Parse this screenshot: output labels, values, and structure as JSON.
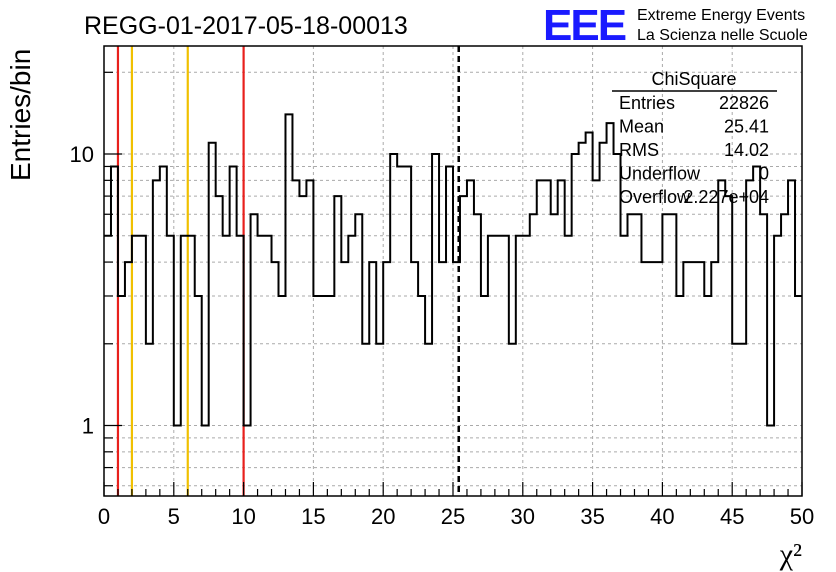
{
  "title": "REGG-01-2017-05-18-00013",
  "logo": {
    "mark": "EEE",
    "line1": "Extreme Energy Events",
    "line2": "La Scienza nelle Scuole",
    "color": "#1a1aff"
  },
  "stats": {
    "name": "ChiSquare",
    "rows": [
      {
        "label": "Entries",
        "value": "22826"
      },
      {
        "label": "Mean",
        "value": "25.41"
      },
      {
        "label": "RMS",
        "value": "14.02"
      },
      {
        "label": "Underflow",
        "value": "0"
      },
      {
        "label": "Overflow",
        "value": "2.227e+04"
      }
    ]
  },
  "chart_data": {
    "type": "histogram",
    "title": "REGG-01-2017-05-18-00013",
    "xlabel": "χ²",
    "ylabel": "Entries/bin",
    "xlim": [
      0,
      50
    ],
    "ylim": [
      0.55,
      25
    ],
    "yscale": "log",
    "grid": true,
    "bin_width": 0.5,
    "x_ticks": [
      "0",
      "5",
      "10",
      "15",
      "20",
      "25",
      "30",
      "35",
      "40",
      "45",
      "50"
    ],
    "y_ticks": [
      "1",
      "10"
    ],
    "values": [
      5,
      9,
      3,
      4,
      5,
      5,
      2,
      8,
      9,
      5,
      1,
      5,
      5,
      3,
      1,
      11,
      7,
      5,
      9,
      5,
      1,
      6,
      5,
      5,
      4,
      3,
      14,
      8,
      7,
      8,
      3,
      3,
      3,
      7,
      4,
      5,
      6,
      2,
      4,
      2,
      4,
      10,
      9,
      9,
      4,
      3,
      2,
      10,
      4,
      9,
      4,
      7,
      8,
      6,
      3,
      5,
      5,
      5,
      2,
      5,
      5,
      6,
      8,
      8,
      6,
      8,
      5,
      10,
      11,
      12,
      8,
      11,
      13,
      10,
      5,
      6,
      6,
      4,
      4,
      4,
      6,
      6,
      3,
      4,
      4,
      4,
      3,
      4,
      8,
      7,
      2,
      2,
      8,
      9,
      6,
      1,
      5,
      6,
      8,
      3
    ],
    "vertical_lines": [
      {
        "x": 1,
        "color": "#e8201c",
        "style": "solid"
      },
      {
        "x": 2,
        "color": "#f0c000",
        "style": "solid"
      },
      {
        "x": 6,
        "color": "#f0c000",
        "style": "solid"
      },
      {
        "x": 10,
        "color": "#e8201c",
        "style": "solid"
      },
      {
        "x": 25.41,
        "color": "#000000",
        "style": "dashed"
      }
    ]
  }
}
